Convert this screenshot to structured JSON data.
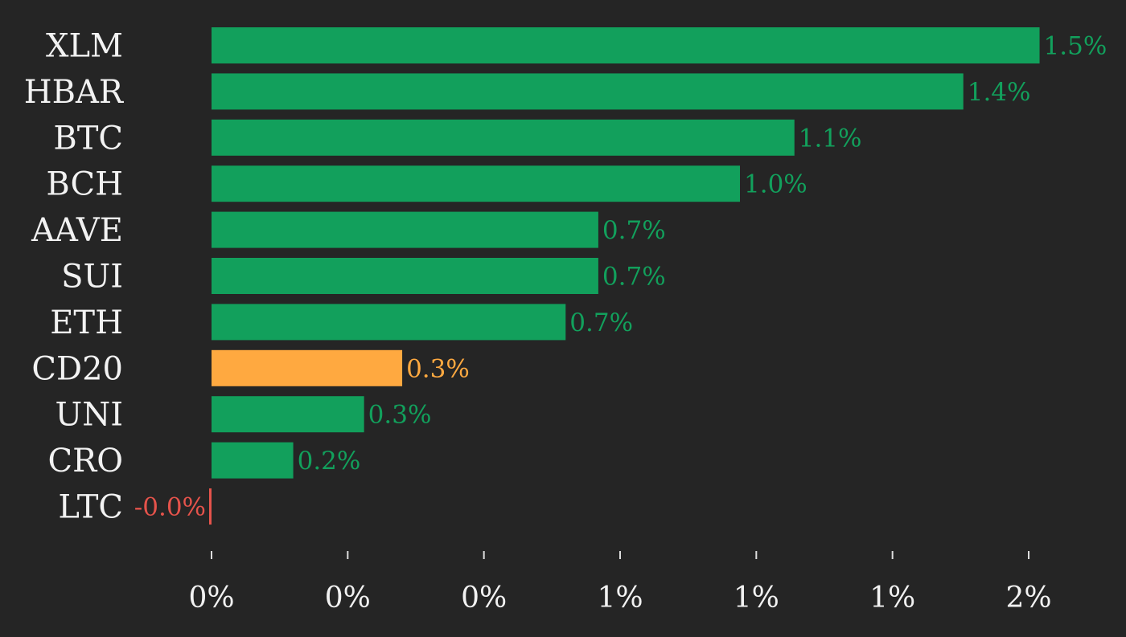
{
  "chart_data": {
    "type": "bar",
    "orientation": "horizontal",
    "categories": [
      "XLM",
      "HBAR",
      "BTC",
      "BCH",
      "AAVE",
      "SUI",
      "ETH",
      "CD20",
      "UNI",
      "CRO",
      "LTC"
    ],
    "values": [
      1.52,
      1.38,
      1.07,
      0.97,
      0.71,
      0.71,
      0.65,
      0.35,
      0.28,
      0.15,
      -0.001
    ],
    "value_labels": [
      "1.5%",
      "1.4%",
      "1.1%",
      "1.0%",
      "0.7%",
      "0.7%",
      "0.7%",
      "0.3%",
      "0.3%",
      "0.2%",
      "-0.0%"
    ],
    "highlight_category": "CD20",
    "xlim": [
      0,
      1.5
    ],
    "x_ticks": [
      0,
      0.25,
      0.5,
      0.75,
      1.0,
      1.25,
      1.5
    ],
    "x_tick_labels": [
      "0%",
      "0%",
      "0%",
      "1%",
      "1%",
      "1%",
      "2%"
    ],
    "grid": false,
    "legend": "none",
    "colors": {
      "background": "#252525",
      "positive": "#12a05c",
      "highlight": "#ffa940",
      "negative": "#e5534b",
      "text": "#f2f2f2",
      "tick": "#dddddd"
    }
  }
}
